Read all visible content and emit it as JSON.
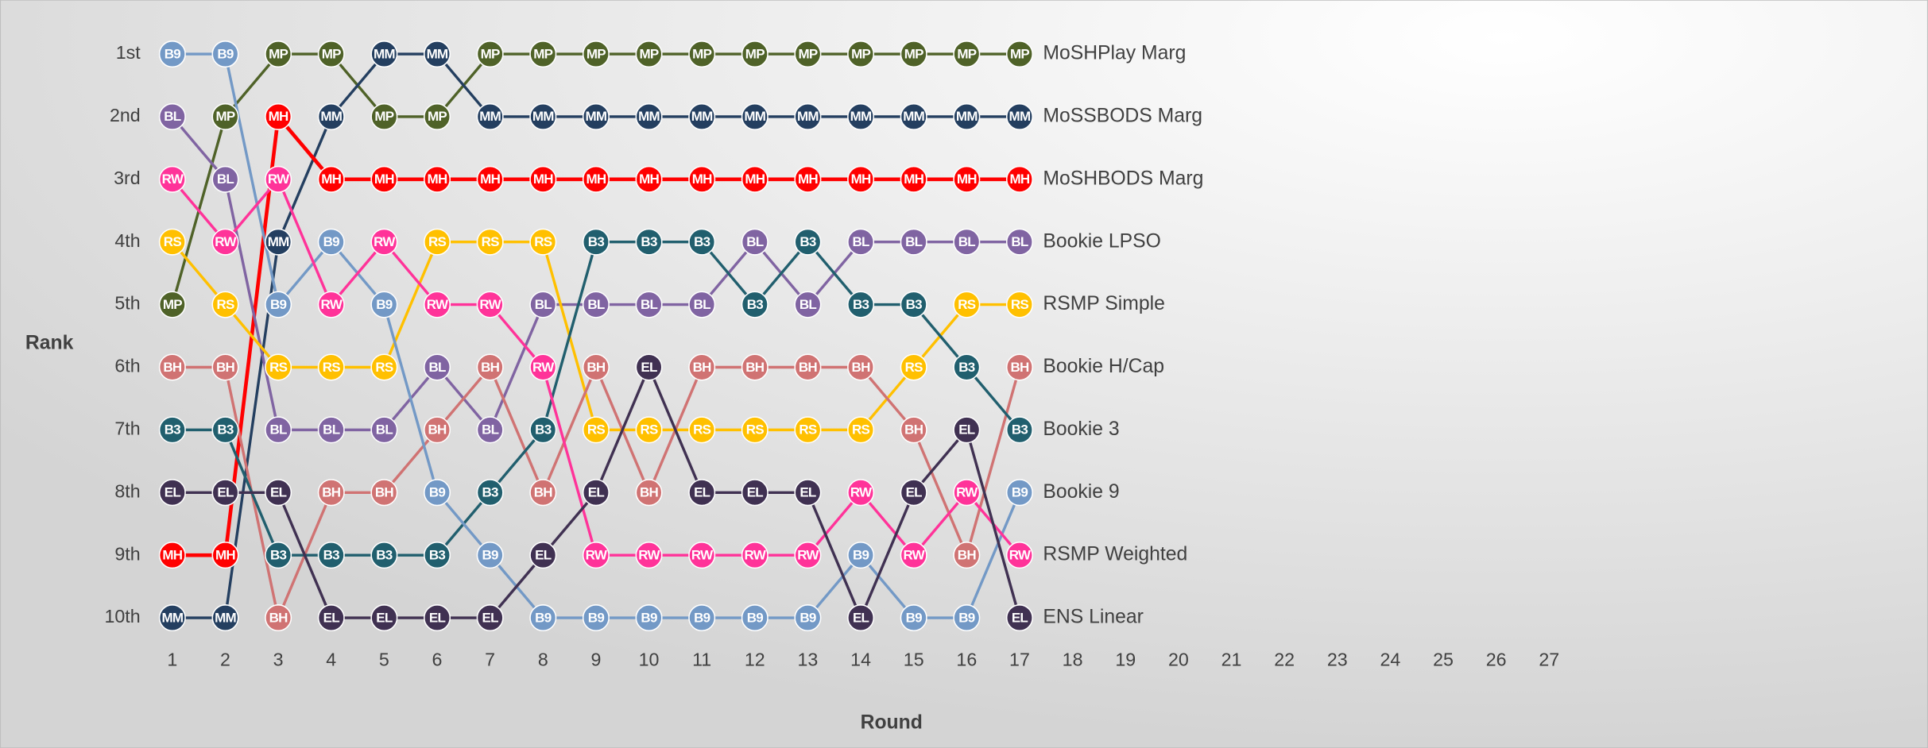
{
  "chart_data": {
    "type": "bump",
    "xlabel": "Round",
    "ylabel": "Rank",
    "x": [
      1,
      2,
      3,
      4,
      5,
      6,
      7,
      8,
      9,
      10,
      11,
      12,
      13,
      14,
      15,
      16,
      17
    ],
    "xlim": [
      0.5,
      27.5
    ],
    "xticks": [
      1,
      2,
      3,
      4,
      5,
      6,
      7,
      8,
      9,
      10,
      11,
      12,
      13,
      14,
      15,
      16,
      17,
      18,
      19,
      20,
      21,
      22,
      23,
      24,
      25,
      26,
      27
    ],
    "ylim": [
      10.5,
      0.5
    ],
    "yticks": [
      {
        "value": 1,
        "label": "1st"
      },
      {
        "value": 2,
        "label": "2nd"
      },
      {
        "value": 3,
        "label": "3rd"
      },
      {
        "value": 4,
        "label": "4th"
      },
      {
        "value": 5,
        "label": "5th"
      },
      {
        "value": 6,
        "label": "6th"
      },
      {
        "value": 7,
        "label": "7th"
      },
      {
        "value": 8,
        "label": "8th"
      },
      {
        "value": 9,
        "label": "9th"
      },
      {
        "value": 10,
        "label": "10th"
      }
    ],
    "series": [
      {
        "name": "MoSHPlay Marg",
        "label": "MP",
        "color": "#4f6228",
        "values": [
          5,
          2,
          1,
          1,
          2,
          2,
          1,
          1,
          1,
          1,
          1,
          1,
          1,
          1,
          1,
          1,
          1
        ]
      },
      {
        "name": "MoSSBODS Marg",
        "label": "MM",
        "color": "#243f60",
        "values": [
          10,
          10,
          4,
          2,
          1,
          1,
          2,
          2,
          2,
          2,
          2,
          2,
          2,
          2,
          2,
          2,
          2
        ]
      },
      {
        "name": "MoSHBODS Marg",
        "label": "MH",
        "color": "#ff0000",
        "values": [
          9,
          9,
          2,
          3,
          3,
          3,
          3,
          3,
          3,
          3,
          3,
          3,
          3,
          3,
          3,
          3,
          3
        ]
      },
      {
        "name": "Bookie LPSO",
        "label": "BL",
        "color": "#8064a2",
        "values": [
          2,
          3,
          7,
          7,
          7,
          6,
          7,
          5,
          5,
          5,
          5,
          4,
          5,
          4,
          4,
          4,
          4
        ]
      },
      {
        "name": "RSMP Simple",
        "label": "RS",
        "color": "#ffc000",
        "values": [
          4,
          5,
          6,
          6,
          6,
          4,
          4,
          4,
          7,
          7,
          7,
          7,
          7,
          7,
          6,
          5,
          5
        ]
      },
      {
        "name": "Bookie H/Cap",
        "label": "BH",
        "color": "#d07373",
        "values": [
          6,
          6,
          10,
          8,
          8,
          7,
          6,
          8,
          6,
          8,
          6,
          6,
          6,
          6,
          7,
          9,
          6
        ]
      },
      {
        "name": "Bookie 3",
        "label": "B3",
        "color": "#215f6e",
        "values": [
          7,
          7,
          9,
          9,
          9,
          9,
          8,
          7,
          4,
          4,
          4,
          5,
          4,
          5,
          5,
          6,
          7
        ]
      },
      {
        "name": "Bookie 9",
        "label": "B9",
        "color": "#7399c6",
        "values": [
          1,
          1,
          5,
          4,
          5,
          8,
          9,
          10,
          10,
          10,
          10,
          10,
          10,
          9,
          10,
          10,
          8
        ]
      },
      {
        "name": "RSMP Weighted",
        "label": "RW",
        "color": "#ff3399",
        "values": [
          3,
          4,
          3,
          5,
          4,
          5,
          5,
          6,
          9,
          9,
          9,
          9,
          9,
          8,
          9,
          8,
          9
        ]
      },
      {
        "name": "ENS Linear",
        "label": "EL",
        "color": "#403152",
        "values": [
          8,
          8,
          8,
          10,
          10,
          10,
          10,
          9,
          8,
          6,
          8,
          8,
          8,
          10,
          8,
          7,
          10
        ]
      }
    ]
  }
}
